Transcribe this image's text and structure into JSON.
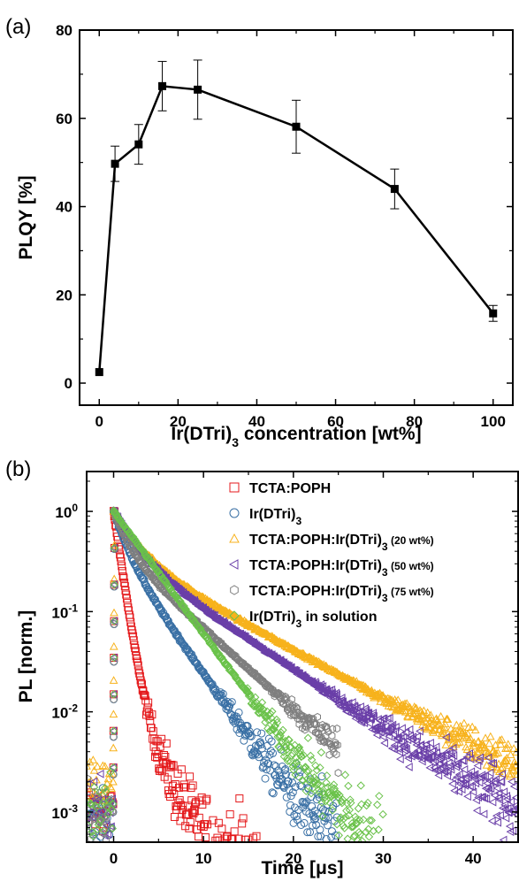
{
  "chart_data": [
    {
      "panel": "(a)",
      "type": "line",
      "xlabel_parts": [
        "Ir(DTri)",
        "3",
        " concentration [wt%]"
      ],
      "ylabel": "PLQY [%]",
      "xlim": [
        -5,
        105
      ],
      "ylim": [
        -5,
        80
      ],
      "xticks": [
        0,
        20,
        40,
        60,
        80,
        100
      ],
      "yticks": [
        0,
        20,
        40,
        60,
        80
      ],
      "grid": false,
      "series": [
        {
          "marker": "filled-square",
          "color": "#000000",
          "x": [
            0,
            4,
            10,
            16,
            25,
            50,
            75,
            100
          ],
          "y": [
            2.5,
            49.7,
            54.1,
            67.3,
            66.5,
            58.1,
            44.0,
            15.8
          ],
          "err": [
            0,
            4.0,
            4.5,
            5.6,
            6.7,
            6.0,
            4.5,
            1.8
          ]
        }
      ]
    },
    {
      "panel": "(b)",
      "type": "scatter",
      "xlabel_parts": [
        "Time [",
        "μ",
        "s]"
      ],
      "ylabel": "PL [norm.]",
      "xlim": [
        -3,
        45
      ],
      "ylog": true,
      "ylim": [
        0.0005,
        2.5
      ],
      "xticks": [
        0,
        10,
        20,
        30,
        40
      ],
      "yticks": [
        {
          "value": 0.001,
          "base": "10",
          "exp": "-3"
        },
        {
          "value": 0.01,
          "base": "10",
          "exp": "-2"
        },
        {
          "value": 0.1,
          "base": "10",
          "exp": "-1"
        },
        {
          "value": 1,
          "base": "10",
          "exp": "0"
        }
      ],
      "legend_position": "top-right",
      "series": [
        {
          "name_parts": [
            "TCTA:POPH"
          ],
          "marker": "square",
          "color": "#e41a1c",
          "decay_components": [
            [
              0.97,
              0.7
            ],
            [
              0.03,
              2.2
            ]
          ],
          "floor": 0.0006,
          "t_end": 16
        },
        {
          "name_parts": [
            "Ir(DTri)",
            "3"
          ],
          "marker": "circle",
          "color": "#3a70a5",
          "decay_components": [
            [
              0.55,
              1.2
            ],
            [
              0.45,
              3.4
            ]
          ],
          "floor": 0.0005,
          "t_end": 25
        },
        {
          "name_parts": [
            "TCTA:POPH:Ir(DTri)",
            "3",
            " (20 wt%)"
          ],
          "marker": "triangle-up",
          "color": "#f7b21c",
          "decay_components": [
            [
              0.6,
              2.2
            ],
            [
              0.4,
              8.8
            ]
          ],
          "floor": 0.001,
          "t_end": 45
        },
        {
          "name_parts": [
            "TCTA:POPH:Ir(DTri)",
            "3",
            " (50 wt%)"
          ],
          "marker": "triangle-left",
          "color": "#6a3fa8",
          "decay_components": [
            [
              0.6,
              2.0
            ],
            [
              0.4,
              7.3
            ]
          ],
          "floor": 0.0006,
          "t_end": 45
        },
        {
          "name_parts": [
            "TCTA:POPH:Ir(DTri)",
            "3",
            " (75 wt%)"
          ],
          "marker": "hexagon",
          "color": "#7f7f7f",
          "decay_components": [
            [
              0.55,
              1.3
            ],
            [
              0.45,
              5.3
            ]
          ],
          "floor": 0.0005,
          "t_end": 25
        },
        {
          "name_parts": [
            "Ir(DTri)",
            "3",
            " in solution"
          ],
          "marker": "diamond",
          "color": "#6ac24a",
          "decay_components": [
            [
              1.0,
              3.55
            ]
          ],
          "floor": 0.0006,
          "t_end": 30
        }
      ]
    }
  ]
}
